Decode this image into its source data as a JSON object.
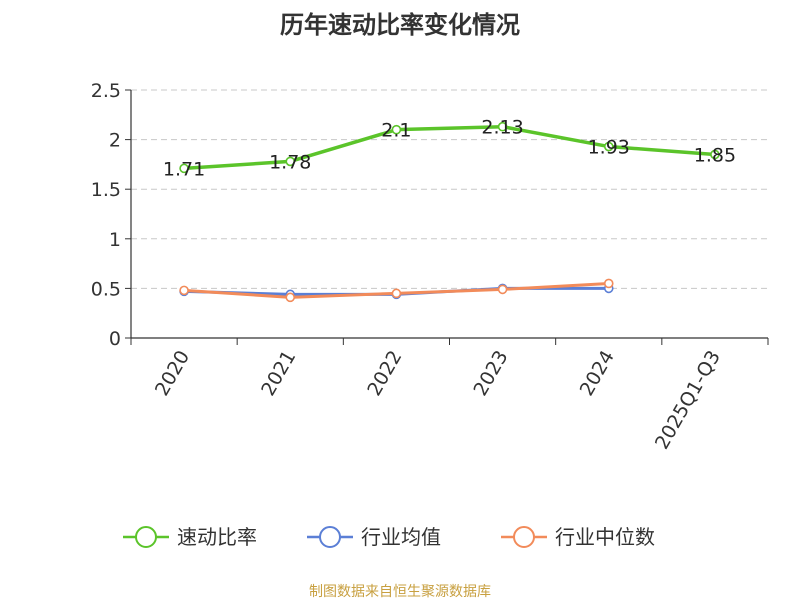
{
  "chart_data": {
    "type": "line",
    "title": "历年速动比率变化情况",
    "categories": [
      "2020",
      "2021",
      "2022",
      "2023",
      "2024",
      "2025Q1-Q3"
    ],
    "ylim": [
      0,
      2.5
    ],
    "yticks": [
      "0",
      "0.5",
      "1",
      "1.5",
      "2",
      "2.5"
    ],
    "grid": true,
    "legend_position": "bottom",
    "series": [
      {
        "name": "速动比率",
        "color": "#5bc42a",
        "values": [
          1.71,
          1.78,
          2.1,
          2.13,
          1.93,
          1.85
        ],
        "labels": [
          "1.71",
          "1.78",
          "2.1",
          "2.13",
          "1.93",
          "1.85"
        ]
      },
      {
        "name": "行业均值",
        "color": "#5b7fd6",
        "values": [
          0.47,
          0.44,
          0.44,
          0.5,
          0.5,
          null
        ]
      },
      {
        "name": "行业中位数",
        "color": "#f28b5a",
        "values": [
          0.48,
          0.41,
          0.45,
          0.49,
          0.55,
          null
        ]
      }
    ]
  },
  "source": "制图数据来自恒生聚源数据库"
}
